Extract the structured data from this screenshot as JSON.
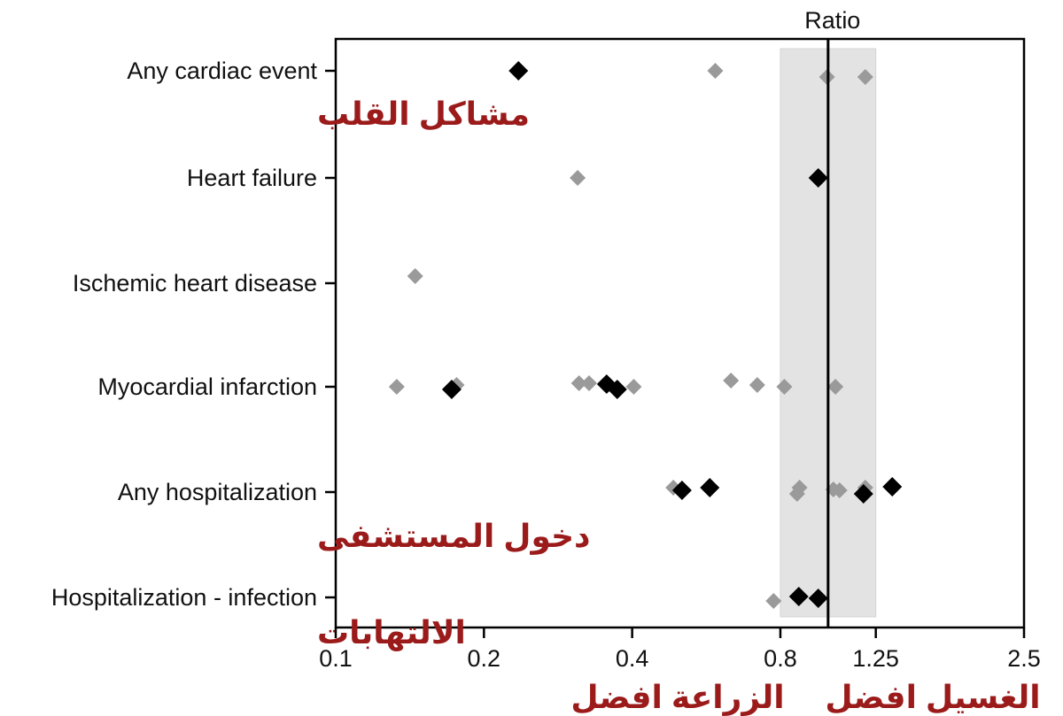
{
  "chart_data": {
    "type": "scatter",
    "title": "Ratio",
    "xscale": "log",
    "xlim": [
      0.1,
      2.5
    ],
    "xticks": [
      0.1,
      0.2,
      0.4,
      0.8,
      1.25,
      2.5
    ],
    "xtick_labels": [
      "0.1",
      "0.2",
      "0.4",
      "0.8",
      "1.25",
      "2.5"
    ],
    "reference_line": 1.0,
    "shaded_band": [
      0.8,
      1.25
    ],
    "categories": [
      "Any cardiac event",
      "Heart failure",
      "Ischemic heart disease",
      "Myocardial infarction",
      "Any hospitalization",
      "Hospitalization - infection"
    ],
    "category_annotations": [
      {
        "category": "Any cardiac event",
        "text": "مشاكل القلب"
      },
      {
        "category": "Any hospitalization",
        "text": "دخول المستشفى"
      },
      {
        "category": "Hospitalization - infection",
        "text": "الالتهابات"
      }
    ],
    "axis_annotations": [
      {
        "side": "left",
        "text": "الزراعة افضل"
      },
      {
        "side": "right",
        "text": "الغسيل افضل"
      }
    ],
    "series": [
      {
        "name": "black",
        "color": "#000000",
        "points": [
          {
            "category": "Any cardiac event",
            "x": 0.235,
            "dy": 0
          },
          {
            "category": "Heart failure",
            "x": 0.955,
            "dy": 0
          },
          {
            "category": "Myocardial infarction",
            "x": 0.172,
            "dy": 3
          },
          {
            "category": "Myocardial infarction",
            "x": 0.355,
            "dy": -3
          },
          {
            "category": "Myocardial infarction",
            "x": 0.373,
            "dy": 3
          },
          {
            "category": "Any hospitalization",
            "x": 0.505,
            "dy": -2
          },
          {
            "category": "Any hospitalization",
            "x": 0.575,
            "dy": -5
          },
          {
            "category": "Any hospitalization",
            "x": 1.18,
            "dy": 2
          },
          {
            "category": "Any hospitalization",
            "x": 1.35,
            "dy": -6
          },
          {
            "category": "Hospitalization - infection",
            "x": 0.872,
            "dy": -1
          },
          {
            "category": "Hospitalization - infection",
            "x": 0.955,
            "dy": 1
          }
        ]
      },
      {
        "name": "gray",
        "color": "#9a9a9a",
        "points": [
          {
            "category": "Any cardiac event",
            "x": 0.59,
            "dy": 0
          },
          {
            "category": "Any cardiac event",
            "x": 0.995,
            "dy": 7
          },
          {
            "category": "Any cardiac event",
            "x": 1.19,
            "dy": 7
          },
          {
            "category": "Heart failure",
            "x": 0.31,
            "dy": 0
          },
          {
            "category": "Ischemic heart disease",
            "x": 0.145,
            "dy": -8
          },
          {
            "category": "Myocardial infarction",
            "x": 0.133,
            "dy": 0
          },
          {
            "category": "Myocardial infarction",
            "x": 0.176,
            "dy": -2
          },
          {
            "category": "Myocardial infarction",
            "x": 0.312,
            "dy": -4
          },
          {
            "category": "Myocardial infarction",
            "x": 0.327,
            "dy": -4
          },
          {
            "category": "Myocardial infarction",
            "x": 0.403,
            "dy": 0
          },
          {
            "category": "Myocardial infarction",
            "x": 0.635,
            "dy": -7
          },
          {
            "category": "Myocardial infarction",
            "x": 0.718,
            "dy": -2
          },
          {
            "category": "Myocardial infarction",
            "x": 0.815,
            "dy": 0
          },
          {
            "category": "Myocardial infarction",
            "x": 1.035,
            "dy": 0
          },
          {
            "category": "Any hospitalization",
            "x": 0.485,
            "dy": -5
          },
          {
            "category": "Any hospitalization",
            "x": 0.875,
            "dy": -5
          },
          {
            "category": "Any hospitalization",
            "x": 0.865,
            "dy": 2
          },
          {
            "category": "Any hospitalization",
            "x": 1.025,
            "dy": -3
          },
          {
            "category": "Any hospitalization",
            "x": 1.055,
            "dy": -2
          },
          {
            "category": "Any hospitalization",
            "x": 1.19,
            "dy": -5
          },
          {
            "category": "Hospitalization - infection",
            "x": 0.775,
            "dy": 4
          }
        ]
      }
    ]
  }
}
